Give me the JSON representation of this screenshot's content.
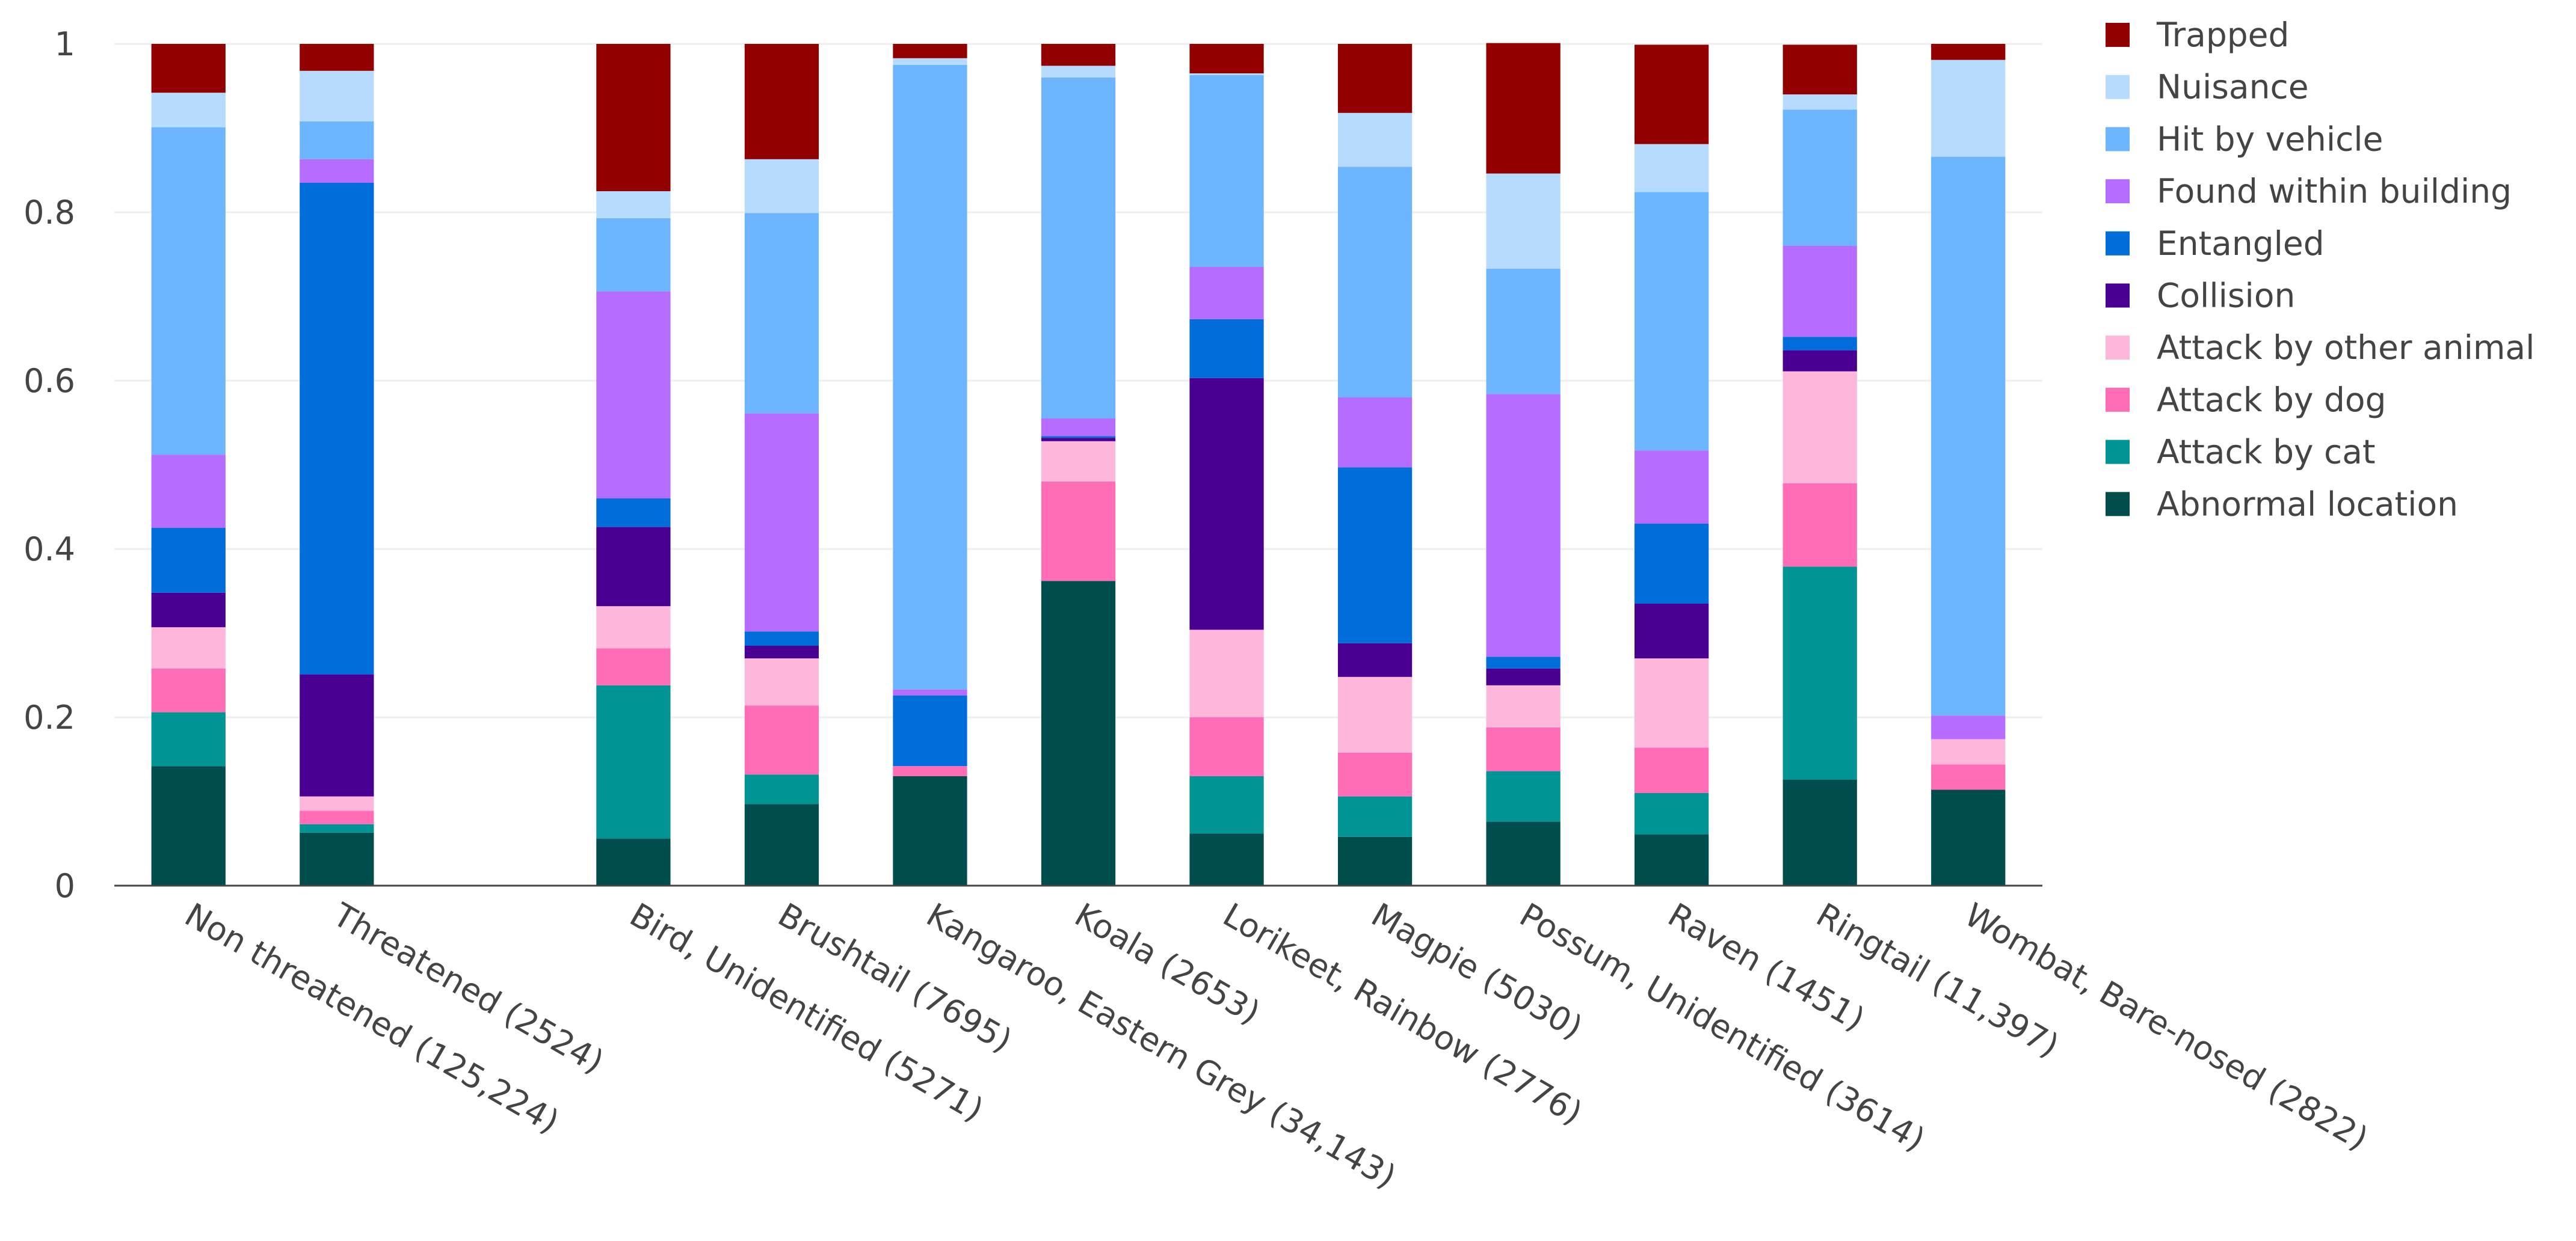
{
  "chart_data": {
    "type": "bar",
    "stacked": true,
    "title": "",
    "xlabel": "",
    "ylabel": "",
    "ylim": [
      0,
      1
    ],
    "yticks": [
      0,
      0.2,
      0.4,
      0.6,
      0.8,
      1
    ],
    "ytick_labels": [
      "0",
      "0.2",
      "0.4",
      "0.6",
      "0.8",
      "1"
    ],
    "legend_position": "right",
    "categories": [
      "Non threatened (125,224)",
      "Threatened (2524)",
      "",
      "Bird, Unidentified (5271)",
      "Brushtail (7695)",
      "Kangaroo, Eastern Grey (34,143)",
      "Koala (2653)",
      "Lorikeet, Rainbow (2776)",
      "Magpie (5030)",
      "Possum, Unidentified (3614)",
      "Raven (1451)",
      "Ringtail (11,397)",
      "Wombat, Bare-nosed (2822)"
    ],
    "series": [
      {
        "name": "Abnormal location",
        "color": "#004d4d",
        "values": [
          0.142,
          0.063,
          null,
          0.056,
          0.097,
          0.13,
          0.362,
          0.062,
          0.058,
          0.076,
          0.061,
          0.126,
          0.114
        ]
      },
      {
        "name": "Attack by cat",
        "color": "#009494",
        "values": [
          0.064,
          0.01,
          null,
          0.182,
          0.035,
          0.0,
          0.0,
          0.068,
          0.048,
          0.06,
          0.049,
          0.253,
          0.0
        ]
      },
      {
        "name": "Attack by dog",
        "color": "#ff6db6",
        "values": [
          0.052,
          0.016,
          null,
          0.044,
          0.082,
          0.012,
          0.118,
          0.07,
          0.052,
          0.052,
          0.054,
          0.099,
          0.03
        ]
      },
      {
        "name": "Attack by other animal",
        "color": "#ffb6db",
        "values": [
          0.049,
          0.017,
          null,
          0.05,
          0.056,
          0.0,
          0.048,
          0.104,
          0.09,
          0.05,
          0.106,
          0.133,
          0.03
        ]
      },
      {
        "name": "Collision",
        "color": "#490092",
        "values": [
          0.041,
          0.145,
          null,
          0.094,
          0.015,
          0.0,
          0.004,
          0.299,
          0.04,
          0.02,
          0.065,
          0.025,
          0.0
        ]
      },
      {
        "name": "Entangled",
        "color": "#006ddb",
        "values": [
          0.077,
          0.584,
          null,
          0.034,
          0.017,
          0.084,
          0.002,
          0.07,
          0.209,
          0.014,
          0.095,
          0.016,
          0.0
        ]
      },
      {
        "name": "Found within building",
        "color": "#b66dff",
        "values": [
          0.087,
          0.028,
          null,
          0.246,
          0.259,
          0.007,
          0.021,
          0.062,
          0.083,
          0.312,
          0.087,
          0.108,
          0.028
        ]
      },
      {
        "name": "Hit by vehicle",
        "color": "#6db6ff",
        "values": [
          0.389,
          0.045,
          null,
          0.087,
          0.238,
          0.742,
          0.405,
          0.228,
          0.274,
          0.149,
          0.307,
          0.162,
          0.664
        ]
      },
      {
        "name": "Nuisance",
        "color": "#b6dbff",
        "values": [
          0.041,
          0.06,
          null,
          0.032,
          0.064,
          0.008,
          0.014,
          0.002,
          0.064,
          0.113,
          0.057,
          0.018,
          0.115
        ]
      },
      {
        "name": "Trapped",
        "color": "#920000",
        "values": [
          0.058,
          0.032,
          null,
          0.175,
          0.137,
          0.017,
          0.026,
          0.035,
          0.082,
          0.155,
          0.118,
          0.059,
          0.019
        ]
      }
    ]
  }
}
